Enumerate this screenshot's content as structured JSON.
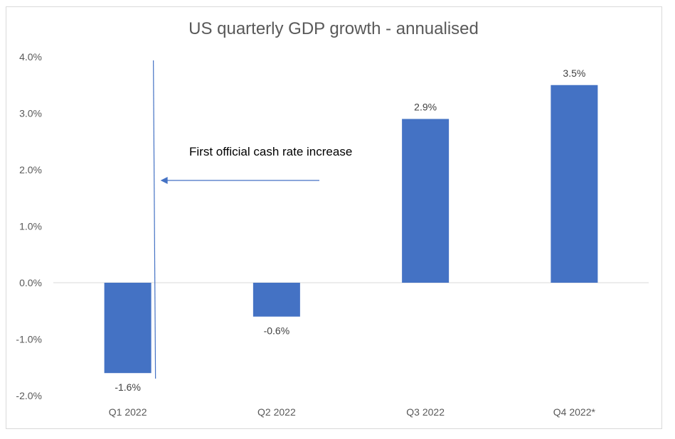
{
  "chart_data": {
    "type": "bar",
    "title": "US quarterly GDP growth - annualised",
    "xlabel": "",
    "ylabel": "",
    "categories": [
      "Q1 2022",
      "Q2 2022",
      "Q3 2022",
      "Q4 2022*"
    ],
    "values": [
      -1.6,
      -0.6,
      2.9,
      3.5
    ],
    "value_labels": [
      "-1.6%",
      "-0.6%",
      "2.9%",
      "3.5%"
    ],
    "ylim": [
      -2.0,
      4.0
    ],
    "yticks": [
      4.0,
      3.0,
      2.0,
      1.0,
      0.0,
      -1.0,
      -2.0
    ],
    "ytick_labels": [
      "4.0%",
      "3.0%",
      "2.0%",
      "1.0%",
      "0.0%",
      "-1.0%",
      "-2.0%"
    ],
    "grid": false,
    "legend": "none",
    "bar_color": "#4472C4",
    "annotation": {
      "text": "First official cash rate increase",
      "marker_category": "Q1 2022",
      "line_color": "#4472C4"
    }
  }
}
